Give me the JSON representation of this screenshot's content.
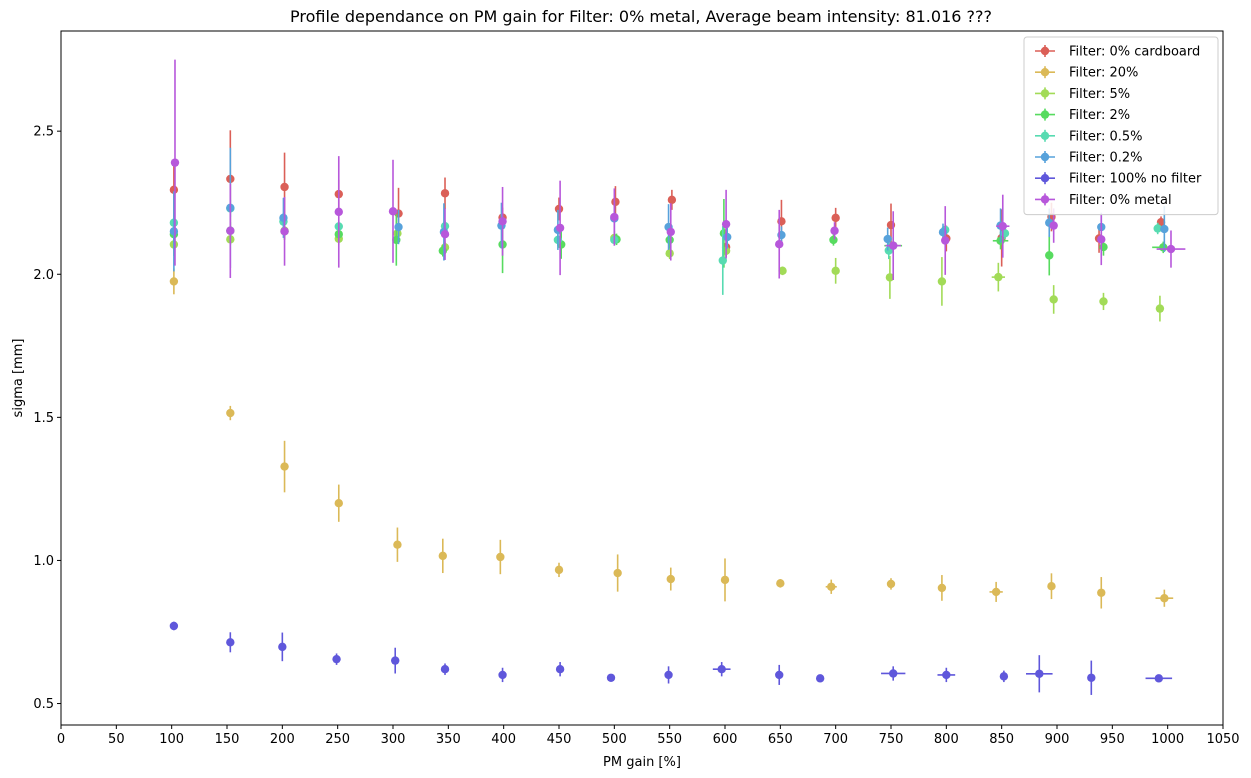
{
  "chart_data": {
    "type": "scatter",
    "title": "Profile dependance on PM gain for Filter: 0% metal, Average beam intensity: 81.016 ???",
    "xlabel": "PM gain [%]",
    "ylabel": "sigma [mm]",
    "xlim": [
      0,
      1050
    ],
    "ylim": [
      0.425,
      2.85
    ],
    "xticks": [
      0,
      50,
      100,
      150,
      200,
      250,
      300,
      350,
      400,
      450,
      500,
      550,
      600,
      650,
      700,
      750,
      800,
      850,
      900,
      950,
      1000,
      1050
    ],
    "yticks": [
      0.5,
      1.0,
      1.5,
      2.0,
      2.5
    ],
    "legend_position": "top-right",
    "grid": false,
    "series": [
      {
        "name": "Filter: 0% cardboard",
        "color": "#db5f57",
        "points": [
          {
            "x": 102,
            "y": 2.295,
            "yerr": 0.1,
            "xerr": 0
          },
          {
            "x": 153,
            "y": 2.333,
            "yerr": 0.17,
            "xerr": 0
          },
          {
            "x": 202,
            "y": 2.305,
            "yerr": 0.12,
            "xerr": 0
          },
          {
            "x": 251,
            "y": 2.28,
            "yerr": 0.05,
            "xerr": 0
          },
          {
            "x": 305,
            "y": 2.212,
            "yerr": 0.09,
            "xerr": 0
          },
          {
            "x": 347,
            "y": 2.283,
            "yerr": 0.055,
            "xerr": 0
          },
          {
            "x": 399,
            "y": 2.198,
            "yerr": 0.035,
            "xerr": 0
          },
          {
            "x": 450,
            "y": 2.228,
            "yerr": 0.04,
            "xerr": 0
          },
          {
            "x": 501,
            "y": 2.253,
            "yerr": 0.055,
            "xerr": 0
          },
          {
            "x": 552,
            "y": 2.26,
            "yerr": 0.035,
            "xerr": 0
          },
          {
            "x": 601,
            "y": 2.095,
            "yerr": 0.035,
            "xerr": 0
          },
          {
            "x": 651,
            "y": 2.185,
            "yerr": 0.075,
            "xerr": 0
          },
          {
            "x": 700,
            "y": 2.197,
            "yerr": 0.035,
            "xerr": 0
          },
          {
            "x": 750,
            "y": 2.172,
            "yerr": 0.075,
            "xerr": 0
          },
          {
            "x": 800,
            "y": 2.125,
            "yerr": 0.045,
            "xerr": 0
          },
          {
            "x": 850,
            "y": 2.127,
            "yerr": 0.1,
            "xerr": 0
          },
          {
            "x": 895,
            "y": 2.2,
            "yerr": 0.05,
            "xerr": 0
          },
          {
            "x": 938,
            "y": 2.125,
            "yerr": 0.05,
            "xerr": 0
          },
          {
            "x": 994,
            "y": 2.182,
            "yerr": 0.02,
            "xerr": 0
          }
        ]
      },
      {
        "name": "Filter: 20%",
        "color": "#dbb957",
        "points": [
          {
            "x": 102,
            "y": 1.975,
            "yerr": 0.045,
            "xerr": 0
          },
          {
            "x": 153,
            "y": 1.515,
            "yerr": 0.025,
            "xerr": 0
          },
          {
            "x": 202,
            "y": 1.328,
            "yerr": 0.09,
            "xerr": 0
          },
          {
            "x": 251,
            "y": 1.2,
            "yerr": 0.065,
            "xerr": 0
          },
          {
            "x": 304,
            "y": 1.055,
            "yerr": 0.06,
            "xerr": 0
          },
          {
            "x": 345,
            "y": 1.016,
            "yerr": 0.06,
            "xerr": 0
          },
          {
            "x": 397,
            "y": 1.012,
            "yerr": 0.06,
            "xerr": 0
          },
          {
            "x": 450,
            "y": 0.967,
            "yerr": 0.025,
            "xerr": 0
          },
          {
            "x": 503,
            "y": 0.956,
            "yerr": 0.065,
            "xerr": 0
          },
          {
            "x": 551,
            "y": 0.935,
            "yerr": 0.04,
            "xerr": 0
          },
          {
            "x": 600,
            "y": 0.932,
            "yerr": 0.075,
            "xerr": 0
          },
          {
            "x": 650,
            "y": 0.92,
            "yerr": 0.015,
            "xerr": 0
          },
          {
            "x": 696,
            "y": 0.908,
            "yerr": 0.025,
            "xerr": 5
          },
          {
            "x": 750,
            "y": 0.918,
            "yerr": 0.02,
            "xerr": 0
          },
          {
            "x": 796,
            "y": 0.904,
            "yerr": 0.045,
            "xerr": 0
          },
          {
            "x": 845,
            "y": 0.89,
            "yerr": 0.035,
            "xerr": 6
          },
          {
            "x": 895,
            "y": 0.91,
            "yerr": 0.045,
            "xerr": 0
          },
          {
            "x": 940,
            "y": 0.887,
            "yerr": 0.055,
            "xerr": 0
          },
          {
            "x": 997,
            "y": 0.868,
            "yerr": 0.03,
            "xerr": 8
          }
        ]
      },
      {
        "name": "Filter: 5%",
        "color": "#a2db57",
        "points": [
          {
            "x": 102,
            "y": 2.104,
            "yerr": 0.04,
            "xerr": 0
          },
          {
            "x": 153,
            "y": 2.122,
            "yerr": 0.02,
            "xerr": 0
          },
          {
            "x": 202,
            "y": 2.152,
            "yerr": 0.03,
            "xerr": 0
          },
          {
            "x": 251,
            "y": 2.124,
            "yerr": 0.02,
            "xerr": 0
          },
          {
            "x": 304,
            "y": 2.143,
            "yerr": 0.03,
            "xerr": 0
          },
          {
            "x": 347,
            "y": 2.094,
            "yerr": 0.02,
            "xerr": 0
          },
          {
            "x": 500,
            "y": 2.127,
            "yerr": 0.025,
            "xerr": 0
          },
          {
            "x": 550,
            "y": 2.073,
            "yerr": 0.02,
            "xerr": 0
          },
          {
            "x": 601,
            "y": 2.082,
            "yerr": 0.02,
            "xerr": 0
          },
          {
            "x": 652,
            "y": 2.012,
            "yerr": 0.015,
            "xerr": 0
          },
          {
            "x": 700,
            "y": 2.012,
            "yerr": 0.045,
            "xerr": 0
          },
          {
            "x": 749,
            "y": 1.989,
            "yerr": 0.075,
            "xerr": 0
          },
          {
            "x": 796,
            "y": 1.975,
            "yerr": 0.085,
            "xerr": 0
          },
          {
            "x": 847,
            "y": 1.99,
            "yerr": 0.05,
            "xerr": 6
          },
          {
            "x": 897,
            "y": 1.912,
            "yerr": 0.05,
            "xerr": 0
          },
          {
            "x": 942,
            "y": 1.905,
            "yerr": 0.03,
            "xerr": 0
          },
          {
            "x": 993,
            "y": 1.88,
            "yerr": 0.045,
            "xerr": 0
          }
        ]
      },
      {
        "name": "Filter: 2%",
        "color": "#57db5f",
        "points": [
          {
            "x": 102,
            "y": 2.14,
            "yerr": 0.05,
            "xerr": 0
          },
          {
            "x": 153,
            "y": 2.152,
            "yerr": 0.03,
            "xerr": 0
          },
          {
            "x": 202,
            "y": 2.15,
            "yerr": 0.03,
            "xerr": 0
          },
          {
            "x": 251,
            "y": 2.14,
            "yerr": 0.03,
            "xerr": 0
          },
          {
            "x": 303,
            "y": 2.12,
            "yerr": 0.09,
            "xerr": 0
          },
          {
            "x": 345,
            "y": 2.082,
            "yerr": 0.02,
            "xerr": 0
          },
          {
            "x": 399,
            "y": 2.104,
            "yerr": 0.1,
            "xerr": 0
          },
          {
            "x": 452,
            "y": 2.104,
            "yerr": 0.05,
            "xerr": 0
          },
          {
            "x": 502,
            "y": 2.122,
            "yerr": 0.02,
            "xerr": 0
          },
          {
            "x": 550,
            "y": 2.12,
            "yerr": 0.03,
            "xerr": 0
          },
          {
            "x": 599,
            "y": 2.143,
            "yerr": 0.12,
            "xerr": 0
          },
          {
            "x": 698,
            "y": 2.12,
            "yerr": 0.02,
            "xerr": 0
          },
          {
            "x": 752,
            "y": 2.1,
            "yerr": 0.03,
            "xerr": 8
          },
          {
            "x": 849,
            "y": 2.117,
            "yerr": 0.03,
            "xerr": 7
          },
          {
            "x": 893,
            "y": 2.066,
            "yerr": 0.07,
            "xerr": 0
          },
          {
            "x": 942,
            "y": 2.095,
            "yerr": 0.03,
            "xerr": 0
          },
          {
            "x": 996,
            "y": 2.094,
            "yerr": 0.02,
            "xerr": 10
          }
        ]
      },
      {
        "name": "Filter: 0.5%",
        "color": "#57dbb1",
        "points": [
          {
            "x": 102,
            "y": 2.18,
            "yerr": 0.02,
            "xerr": 0
          },
          {
            "x": 153,
            "y": 2.23,
            "yerr": 0.03,
            "xerr": 0
          },
          {
            "x": 201,
            "y": 2.184,
            "yerr": 0.03,
            "xerr": 0
          },
          {
            "x": 251,
            "y": 2.167,
            "yerr": 0.02,
            "xerr": 0
          },
          {
            "x": 347,
            "y": 2.168,
            "yerr": 0.02,
            "xerr": 0
          },
          {
            "x": 449,
            "y": 2.12,
            "yerr": 0.02,
            "xerr": 0
          },
          {
            "x": 500,
            "y": 2.12,
            "yerr": 0.02,
            "xerr": 0
          },
          {
            "x": 598,
            "y": 2.048,
            "yerr": 0.12,
            "xerr": 0
          },
          {
            "x": 748,
            "y": 2.083,
            "yerr": 0.03,
            "xerr": 0
          },
          {
            "x": 799,
            "y": 2.155,
            "yerr": 0.02,
            "xerr": 0
          },
          {
            "x": 853,
            "y": 2.143,
            "yerr": 0.02,
            "xerr": 0
          },
          {
            "x": 991,
            "y": 2.16,
            "yerr": 0.02,
            "xerr": 0
          }
        ]
      },
      {
        "name": "Filter: 0.2%",
        "color": "#57a2db",
        "points": [
          {
            "x": 102,
            "y": 2.15,
            "yerr": 0.14,
            "xerr": 0
          },
          {
            "x": 153,
            "y": 2.232,
            "yerr": 0.21,
            "xerr": 0
          },
          {
            "x": 201,
            "y": 2.197,
            "yerr": 0.07,
            "xerr": 0
          },
          {
            "x": 305,
            "y": 2.165,
            "yerr": 0.06,
            "xerr": 0
          },
          {
            "x": 346,
            "y": 2.148,
            "yerr": 0.1,
            "xerr": 0
          },
          {
            "x": 398,
            "y": 2.17,
            "yerr": 0.08,
            "xerr": 0
          },
          {
            "x": 449,
            "y": 2.155,
            "yerr": 0.07,
            "xerr": 0
          },
          {
            "x": 500,
            "y": 2.195,
            "yerr": 0.06,
            "xerr": 0
          },
          {
            "x": 549,
            "y": 2.165,
            "yerr": 0.08,
            "xerr": 0
          },
          {
            "x": 602,
            "y": 2.13,
            "yerr": 0.04,
            "xerr": 0
          },
          {
            "x": 651,
            "y": 2.137,
            "yerr": 0.03,
            "xerr": 0
          },
          {
            "x": 747,
            "y": 2.123,
            "yerr": 0.04,
            "xerr": 0
          },
          {
            "x": 797,
            "y": 2.147,
            "yerr": 0.03,
            "xerr": 0
          },
          {
            "x": 849,
            "y": 2.17,
            "yerr": 0.06,
            "xerr": 0
          },
          {
            "x": 893,
            "y": 2.18,
            "yerr": 0.05,
            "xerr": 0
          },
          {
            "x": 940,
            "y": 2.165,
            "yerr": 0.05,
            "xerr": 0
          },
          {
            "x": 997,
            "y": 2.158,
            "yerr": 0.08,
            "xerr": 0
          }
        ]
      },
      {
        "name": "Filter: 100% no filter",
        "color": "#5f57db",
        "points": [
          {
            "x": 102,
            "y": 0.771,
            "yerr": 0.015,
            "xerr": 0
          },
          {
            "x": 153,
            "y": 0.714,
            "yerr": 0.035,
            "xerr": 0
          },
          {
            "x": 200,
            "y": 0.698,
            "yerr": 0.05,
            "xerr": 0
          },
          {
            "x": 249,
            "y": 0.655,
            "yerr": 0.02,
            "xerr": 0
          },
          {
            "x": 302,
            "y": 0.65,
            "yerr": 0.045,
            "xerr": 0
          },
          {
            "x": 347,
            "y": 0.62,
            "yerr": 0.02,
            "xerr": 0
          },
          {
            "x": 399,
            "y": 0.6,
            "yerr": 0.025,
            "xerr": 0
          },
          {
            "x": 451,
            "y": 0.62,
            "yerr": 0.025,
            "xerr": 0
          },
          {
            "x": 497,
            "y": 0.59,
            "yerr": 0.01,
            "xerr": 0
          },
          {
            "x": 549,
            "y": 0.6,
            "yerr": 0.03,
            "xerr": 0
          },
          {
            "x": 597,
            "y": 0.62,
            "yerr": 0.025,
            "xerr": 8
          },
          {
            "x": 649,
            "y": 0.6,
            "yerr": 0.035,
            "xerr": 0
          },
          {
            "x": 686,
            "y": 0.588,
            "yerr": 0.01,
            "xerr": 0
          },
          {
            "x": 752,
            "y": 0.605,
            "yerr": 0.025,
            "xerr": 11
          },
          {
            "x": 800,
            "y": 0.6,
            "yerr": 0.025,
            "xerr": 8
          },
          {
            "x": 852,
            "y": 0.595,
            "yerr": 0.02,
            "xerr": 0
          },
          {
            "x": 884,
            "y": 0.604,
            "yerr": 0.065,
            "xerr": 12
          },
          {
            "x": 931,
            "y": 0.59,
            "yerr": 0.06,
            "xerr": 0
          },
          {
            "x": 992,
            "y": 0.588,
            "yerr": 0.01,
            "xerr": 12
          }
        ]
      },
      {
        "name": "Filter: 0% metal",
        "color": "#b757db",
        "points": [
          {
            "x": 103,
            "y": 2.39,
            "yerr": 0.36,
            "xerr": 0
          },
          {
            "x": 153,
            "y": 2.152,
            "yerr": 0.165,
            "xerr": 0
          },
          {
            "x": 202,
            "y": 2.15,
            "yerr": 0.12,
            "xerr": 0
          },
          {
            "x": 251,
            "y": 2.218,
            "yerr": 0.195,
            "xerr": 0
          },
          {
            "x": 300,
            "y": 2.22,
            "yerr": 0.18,
            "xerr": 0
          },
          {
            "x": 347,
            "y": 2.14,
            "yerr": 0.09,
            "xerr": 0
          },
          {
            "x": 399,
            "y": 2.185,
            "yerr": 0.12,
            "xerr": 0
          },
          {
            "x": 451,
            "y": 2.162,
            "yerr": 0.165,
            "xerr": 0
          },
          {
            "x": 500,
            "y": 2.2,
            "yerr": 0.1,
            "xerr": 0
          },
          {
            "x": 551,
            "y": 2.148,
            "yerr": 0.1,
            "xerr": 0
          },
          {
            "x": 601,
            "y": 2.175,
            "yerr": 0.12,
            "xerr": 0
          },
          {
            "x": 649,
            "y": 2.105,
            "yerr": 0.12,
            "xerr": 0
          },
          {
            "x": 699,
            "y": 2.152,
            "yerr": 0.03,
            "xerr": 0
          },
          {
            "x": 752,
            "y": 2.1,
            "yerr": 0.12,
            "xerr": 7
          },
          {
            "x": 799,
            "y": 2.118,
            "yerr": 0.12,
            "xerr": 0
          },
          {
            "x": 851,
            "y": 2.168,
            "yerr": 0.11,
            "xerr": 6
          },
          {
            "x": 897,
            "y": 2.17,
            "yerr": 0.06,
            "xerr": 0
          },
          {
            "x": 940,
            "y": 2.122,
            "yerr": 0.09,
            "xerr": 0
          },
          {
            "x": 1003,
            "y": 2.088,
            "yerr": 0.065,
            "xerr": 13
          }
        ]
      }
    ]
  }
}
